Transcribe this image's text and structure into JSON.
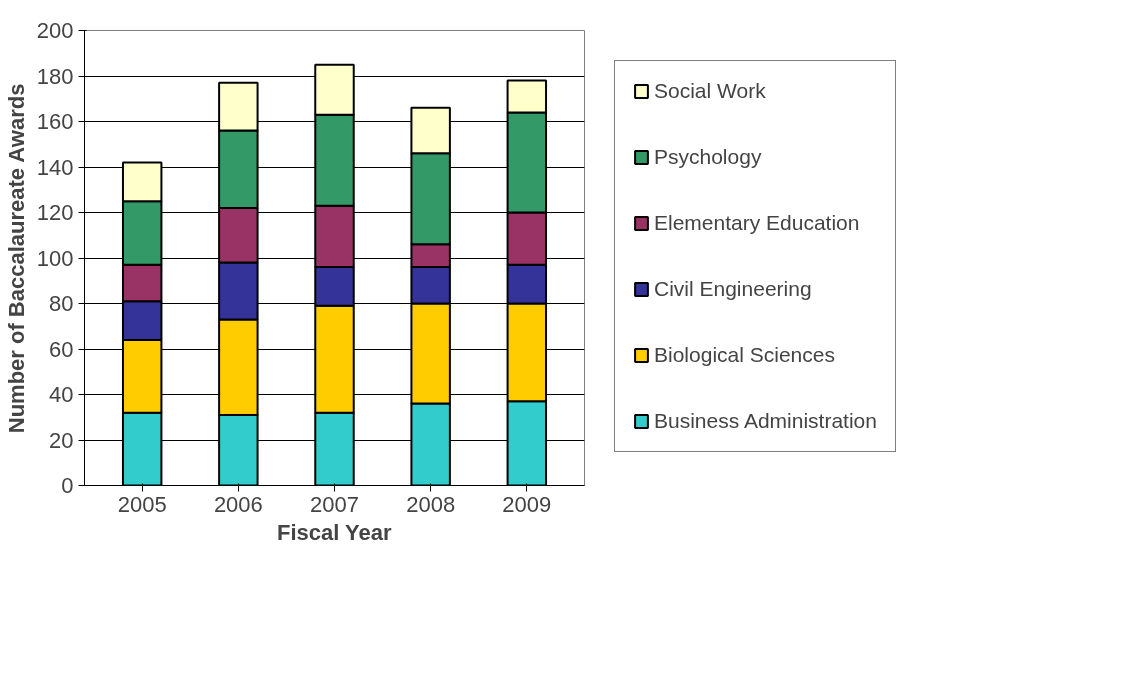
{
  "chart_data": {
    "type": "bar",
    "stacked": true,
    "xlabel": "Fiscal Year",
    "ylabel": "Number of Baccalaureate Awards",
    "categories": [
      "2005",
      "2006",
      "2007",
      "2008",
      "2009"
    ],
    "series": [
      {
        "name": "Business Administration",
        "color": "#33cccc",
        "values": [
          32,
          31,
          32,
          36,
          37
        ]
      },
      {
        "name": "Biological Sciences",
        "color": "#ffcc00",
        "values": [
          32,
          42,
          47,
          44,
          43
        ]
      },
      {
        "name": "Civil Engineering",
        "color": "#333399",
        "values": [
          17,
          25,
          17,
          16,
          17
        ]
      },
      {
        "name": "Elementary Education",
        "color": "#993366",
        "values": [
          16,
          24,
          27,
          10,
          23
        ]
      },
      {
        "name": "Psychology",
        "color": "#339966",
        "values": [
          28,
          34,
          40,
          40,
          44
        ]
      },
      {
        "name": "Social Work",
        "color": "#ffffcc",
        "values": [
          17,
          21,
          22,
          20,
          14
        ]
      }
    ],
    "ylim": [
      0,
      200
    ],
    "yticks": [
      0,
      20,
      40,
      60,
      80,
      100,
      120,
      140,
      160,
      180,
      200
    ],
    "grid": "y",
    "legend": "right"
  }
}
